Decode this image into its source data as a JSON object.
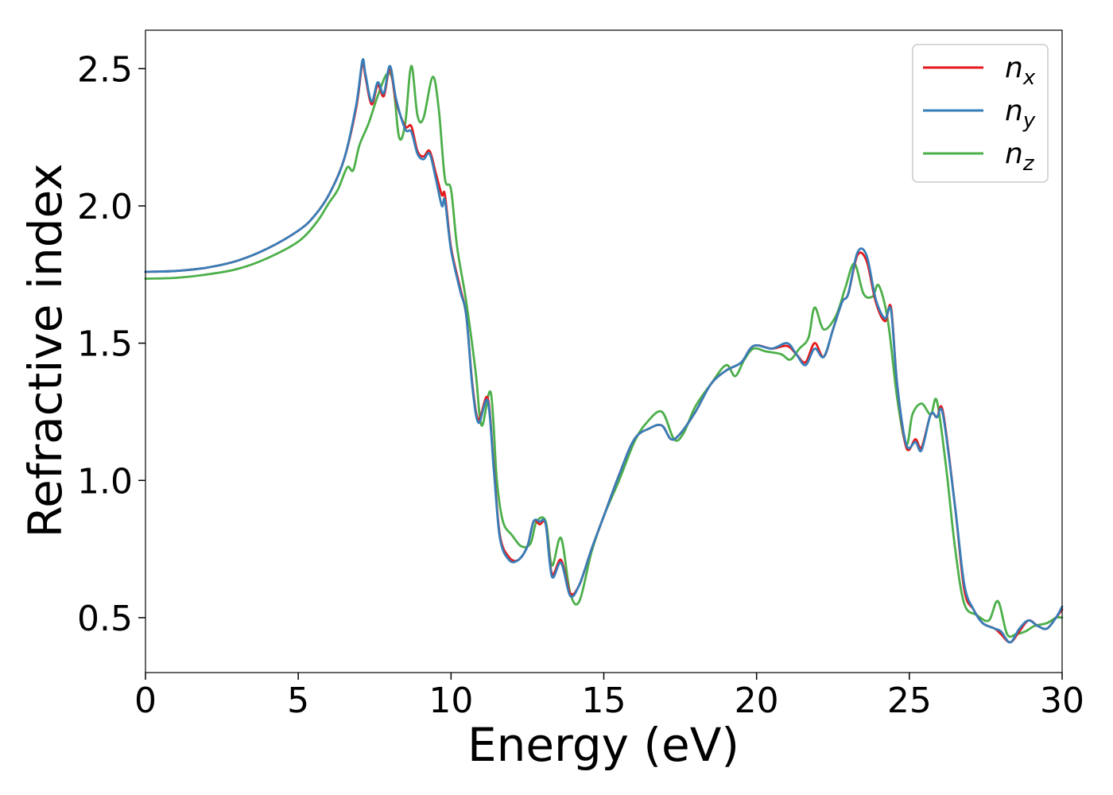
{
  "chart_data": {
    "type": "line",
    "title": "",
    "xlabel": "Energy (eV)",
    "ylabel": "Refractive index",
    "xlim": [
      0,
      30
    ],
    "ylim": [
      0.3,
      2.64
    ],
    "x_ticks": [
      "0",
      "5",
      "10",
      "15",
      "20",
      "25",
      "30"
    ],
    "y_ticks": [
      "0.5",
      "1.0",
      "1.5",
      "2.0",
      "2.5"
    ],
    "grid": false,
    "legend_position": "top-right",
    "series": [
      {
        "name": "n_x",
        "legend_base": "n",
        "legend_sub": "x",
        "color": "#e41a1c",
        "points": [
          [
            0,
            1.76
          ],
          [
            1,
            1.763
          ],
          [
            2,
            1.775
          ],
          [
            3,
            1.8
          ],
          [
            4,
            1.845
          ],
          [
            5,
            1.91
          ],
          [
            5.5,
            1.96
          ],
          [
            6,
            2.04
          ],
          [
            6.5,
            2.17
          ],
          [
            6.9,
            2.36
          ],
          [
            7.1,
            2.52
          ],
          [
            7.2,
            2.47
          ],
          [
            7.4,
            2.37
          ],
          [
            7.6,
            2.44
          ],
          [
            7.8,
            2.4
          ],
          [
            8.0,
            2.5
          ],
          [
            8.2,
            2.38
          ],
          [
            8.5,
            2.29
          ],
          [
            8.7,
            2.29
          ],
          [
            8.9,
            2.2
          ],
          [
            9.1,
            2.18
          ],
          [
            9.3,
            2.2
          ],
          [
            9.5,
            2.12
          ],
          [
            9.7,
            2.04
          ],
          [
            9.8,
            2.04
          ],
          [
            10.0,
            1.85
          ],
          [
            10.3,
            1.7
          ],
          [
            10.5,
            1.6
          ],
          [
            10.7,
            1.35
          ],
          [
            10.9,
            1.22
          ],
          [
            11.2,
            1.3
          ],
          [
            11.4,
            1.05
          ],
          [
            11.6,
            0.8
          ],
          [
            11.9,
            0.72
          ],
          [
            12.2,
            0.71
          ],
          [
            12.5,
            0.76
          ],
          [
            12.7,
            0.85
          ],
          [
            12.9,
            0.84
          ],
          [
            13.1,
            0.84
          ],
          [
            13.3,
            0.66
          ],
          [
            13.6,
            0.71
          ],
          [
            13.9,
            0.59
          ],
          [
            14.2,
            0.62
          ],
          [
            14.6,
            0.75
          ],
          [
            15,
            0.87
          ],
          [
            15.5,
            1.02
          ],
          [
            16,
            1.15
          ],
          [
            16.5,
            1.19
          ],
          [
            16.9,
            1.2
          ],
          [
            17.2,
            1.15
          ],
          [
            17.5,
            1.17
          ],
          [
            18,
            1.25
          ],
          [
            18.5,
            1.35
          ],
          [
            19,
            1.4
          ],
          [
            19.5,
            1.43
          ],
          [
            19.9,
            1.49
          ],
          [
            20.5,
            1.48
          ],
          [
            21,
            1.49
          ],
          [
            21.3,
            1.46
          ],
          [
            21.6,
            1.43
          ],
          [
            21.9,
            1.5
          ],
          [
            22.2,
            1.45
          ],
          [
            22.5,
            1.55
          ],
          [
            22.8,
            1.65
          ],
          [
            23.0,
            1.68
          ],
          [
            23.3,
            1.82
          ],
          [
            23.6,
            1.8
          ],
          [
            23.9,
            1.65
          ],
          [
            24.2,
            1.58
          ],
          [
            24.4,
            1.63
          ],
          [
            24.6,
            1.35
          ],
          [
            24.9,
            1.12
          ],
          [
            25.2,
            1.15
          ],
          [
            25.4,
            1.12
          ],
          [
            25.7,
            1.24
          ],
          [
            25.9,
            1.23
          ],
          [
            26.1,
            1.25
          ],
          [
            26.5,
            0.9
          ],
          [
            26.8,
            0.6
          ],
          [
            27.1,
            0.53
          ],
          [
            27.4,
            0.48
          ],
          [
            27.8,
            0.46
          ],
          [
            28.0,
            0.44
          ],
          [
            28.3,
            0.41
          ],
          [
            28.6,
            0.45
          ],
          [
            28.9,
            0.49
          ],
          [
            29.2,
            0.47
          ],
          [
            29.5,
            0.46
          ],
          [
            29.8,
            0.5
          ],
          [
            30,
            0.53
          ]
        ]
      },
      {
        "name": "n_y",
        "legend_base": "n",
        "legend_sub": "y",
        "color": "#377eb8",
        "points": [
          [
            0,
            1.76
          ],
          [
            1,
            1.763
          ],
          [
            2,
            1.775
          ],
          [
            3,
            1.8
          ],
          [
            4,
            1.845
          ],
          [
            5,
            1.91
          ],
          [
            5.5,
            1.96
          ],
          [
            6,
            2.04
          ],
          [
            6.5,
            2.17
          ],
          [
            6.9,
            2.37
          ],
          [
            7.1,
            2.53
          ],
          [
            7.2,
            2.48
          ],
          [
            7.4,
            2.38
          ],
          [
            7.6,
            2.45
          ],
          [
            7.8,
            2.41
          ],
          [
            8.0,
            2.51
          ],
          [
            8.2,
            2.39
          ],
          [
            8.5,
            2.28
          ],
          [
            8.7,
            2.27
          ],
          [
            8.9,
            2.19
          ],
          [
            9.1,
            2.17
          ],
          [
            9.3,
            2.19
          ],
          [
            9.5,
            2.1
          ],
          [
            9.7,
            2.0
          ],
          [
            9.8,
            2.02
          ],
          [
            10.0,
            1.84
          ],
          [
            10.3,
            1.69
          ],
          [
            10.5,
            1.6
          ],
          [
            10.7,
            1.34
          ],
          [
            10.9,
            1.21
          ],
          [
            11.2,
            1.29
          ],
          [
            11.4,
            1.04
          ],
          [
            11.6,
            0.79
          ],
          [
            11.9,
            0.71
          ],
          [
            12.2,
            0.71
          ],
          [
            12.5,
            0.76
          ],
          [
            12.7,
            0.85
          ],
          [
            12.9,
            0.85
          ],
          [
            13.1,
            0.84
          ],
          [
            13.3,
            0.65
          ],
          [
            13.6,
            0.7
          ],
          [
            13.9,
            0.58
          ],
          [
            14.2,
            0.62
          ],
          [
            14.6,
            0.75
          ],
          [
            15,
            0.87
          ],
          [
            15.5,
            1.02
          ],
          [
            16,
            1.15
          ],
          [
            16.5,
            1.19
          ],
          [
            16.9,
            1.2
          ],
          [
            17.2,
            1.15
          ],
          [
            17.5,
            1.17
          ],
          [
            18,
            1.25
          ],
          [
            18.5,
            1.35
          ],
          [
            19,
            1.4
          ],
          [
            19.5,
            1.43
          ],
          [
            19.9,
            1.49
          ],
          [
            20.5,
            1.48
          ],
          [
            21,
            1.5
          ],
          [
            21.3,
            1.46
          ],
          [
            21.6,
            1.42
          ],
          [
            21.9,
            1.48
          ],
          [
            22.2,
            1.45
          ],
          [
            22.5,
            1.55
          ],
          [
            22.8,
            1.65
          ],
          [
            23.0,
            1.68
          ],
          [
            23.3,
            1.83
          ],
          [
            23.6,
            1.82
          ],
          [
            23.9,
            1.66
          ],
          [
            24.2,
            1.59
          ],
          [
            24.4,
            1.62
          ],
          [
            24.6,
            1.35
          ],
          [
            24.9,
            1.13
          ],
          [
            25.2,
            1.14
          ],
          [
            25.4,
            1.11
          ],
          [
            25.7,
            1.24
          ],
          [
            25.9,
            1.23
          ],
          [
            26.1,
            1.24
          ],
          [
            26.5,
            0.9
          ],
          [
            26.8,
            0.62
          ],
          [
            27.1,
            0.53
          ],
          [
            27.4,
            0.48
          ],
          [
            27.8,
            0.46
          ],
          [
            28.0,
            0.45
          ],
          [
            28.3,
            0.41
          ],
          [
            28.6,
            0.46
          ],
          [
            28.9,
            0.49
          ],
          [
            29.2,
            0.47
          ],
          [
            29.5,
            0.46
          ],
          [
            29.8,
            0.5
          ],
          [
            30,
            0.54
          ]
        ]
      },
      {
        "name": "n_z",
        "legend_base": "n",
        "legend_sub": "z",
        "color": "#4daf4a",
        "points": [
          [
            0,
            1.735
          ],
          [
            1,
            1.738
          ],
          [
            2,
            1.75
          ],
          [
            3,
            1.77
          ],
          [
            4,
            1.81
          ],
          [
            5,
            1.87
          ],
          [
            5.6,
            1.94
          ],
          [
            6,
            2.01
          ],
          [
            6.3,
            2.06
          ],
          [
            6.6,
            2.14
          ],
          [
            6.8,
            2.13
          ],
          [
            7.0,
            2.22
          ],
          [
            7.3,
            2.3
          ],
          [
            7.6,
            2.4
          ],
          [
            7.9,
            2.48
          ],
          [
            8.1,
            2.45
          ],
          [
            8.3,
            2.25
          ],
          [
            8.5,
            2.3
          ],
          [
            8.7,
            2.51
          ],
          [
            8.9,
            2.33
          ],
          [
            9.1,
            2.32
          ],
          [
            9.4,
            2.47
          ],
          [
            9.6,
            2.35
          ],
          [
            9.8,
            2.1
          ],
          [
            10.0,
            2.06
          ],
          [
            10.2,
            1.85
          ],
          [
            10.5,
            1.65
          ],
          [
            10.8,
            1.4
          ],
          [
            11.0,
            1.2
          ],
          [
            11.3,
            1.32
          ],
          [
            11.5,
            1.0
          ],
          [
            11.7,
            0.85
          ],
          [
            12.0,
            0.8
          ],
          [
            12.3,
            0.76
          ],
          [
            12.6,
            0.77
          ],
          [
            12.8,
            0.85
          ],
          [
            13.1,
            0.85
          ],
          [
            13.3,
            0.69
          ],
          [
            13.6,
            0.79
          ],
          [
            13.9,
            0.59
          ],
          [
            14.2,
            0.56
          ],
          [
            14.6,
            0.74
          ],
          [
            15,
            0.87
          ],
          [
            15.5,
            1.0
          ],
          [
            16,
            1.14
          ],
          [
            16.4,
            1.21
          ],
          [
            16.9,
            1.25
          ],
          [
            17.3,
            1.15
          ],
          [
            17.6,
            1.17
          ],
          [
            18,
            1.27
          ],
          [
            18.5,
            1.35
          ],
          [
            19,
            1.42
          ],
          [
            19.3,
            1.38
          ],
          [
            19.6,
            1.44
          ],
          [
            19.9,
            1.48
          ],
          [
            20.3,
            1.47
          ],
          [
            20.8,
            1.46
          ],
          [
            21.1,
            1.44
          ],
          [
            21.4,
            1.48
          ],
          [
            21.7,
            1.52
          ],
          [
            21.9,
            1.63
          ],
          [
            22.2,
            1.55
          ],
          [
            22.6,
            1.6
          ],
          [
            22.9,
            1.7
          ],
          [
            23.2,
            1.79
          ],
          [
            23.5,
            1.68
          ],
          [
            23.8,
            1.67
          ],
          [
            24.0,
            1.71
          ],
          [
            24.3,
            1.58
          ],
          [
            24.6,
            1.3
          ],
          [
            24.9,
            1.13
          ],
          [
            25.1,
            1.24
          ],
          [
            25.4,
            1.28
          ],
          [
            25.7,
            1.24
          ],
          [
            25.9,
            1.29
          ],
          [
            26.2,
            1.05
          ],
          [
            26.5,
            0.75
          ],
          [
            26.8,
            0.55
          ],
          [
            27.2,
            0.51
          ],
          [
            27.6,
            0.49
          ],
          [
            27.9,
            0.56
          ],
          [
            28.2,
            0.44
          ],
          [
            28.5,
            0.44
          ],
          [
            28.8,
            0.45
          ],
          [
            29.1,
            0.47
          ],
          [
            29.5,
            0.48
          ],
          [
            29.8,
            0.5
          ],
          [
            30,
            0.5
          ]
        ]
      }
    ]
  }
}
